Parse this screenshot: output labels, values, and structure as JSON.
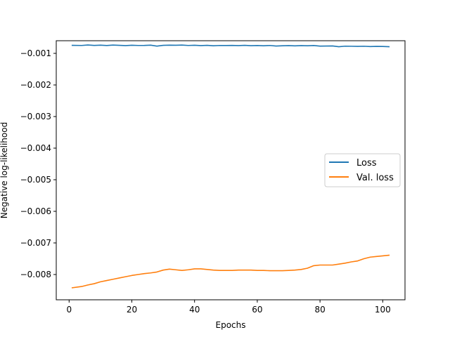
{
  "chart_data": {
    "type": "line",
    "xlabel": "Epochs",
    "ylabel": "Negative log-likelihood",
    "xlim": [
      -4.1,
      107.1
    ],
    "ylim": [
      -0.0088,
      -0.0006
    ],
    "xticks": [
      0,
      20,
      40,
      60,
      80,
      100
    ],
    "yticks": [
      -0.001,
      -0.002,
      -0.003,
      -0.004,
      -0.005,
      -0.006,
      -0.007,
      -0.008
    ],
    "xtick_labels": [
      "0",
      "20",
      "40",
      "60",
      "80",
      "100"
    ],
    "ytick_labels": [
      "−0.001",
      "−0.002",
      "−0.003",
      "−0.004",
      "−0.005",
      "−0.006",
      "−0.007",
      "−0.008"
    ],
    "legend": "center-right",
    "grid": false,
    "series": [
      {
        "name": "Loss",
        "color": "#1f77b4",
        "x": [
          1,
          4,
          6,
          8,
          10,
          12,
          14,
          16,
          18,
          20,
          22,
          24,
          26,
          28,
          30,
          32,
          34,
          36,
          38,
          40,
          42,
          44,
          46,
          48,
          50,
          52,
          54,
          56,
          58,
          60,
          62,
          64,
          66,
          68,
          70,
          72,
          74,
          76,
          78,
          80,
          82,
          84,
          86,
          88,
          90,
          92,
          94,
          96,
          98,
          100,
          102
        ],
        "y": [
          -0.000745,
          -0.00075,
          -0.000735,
          -0.000748,
          -0.00074,
          -0.000752,
          -0.000738,
          -0.000745,
          -0.000755,
          -0.000742,
          -0.00075,
          -0.000748,
          -0.00074,
          -0.00077,
          -0.000745,
          -0.00074,
          -0.000742,
          -0.000738,
          -0.00075,
          -0.000742,
          -0.000755,
          -0.000745,
          -0.00076,
          -0.00075,
          -0.000752,
          -0.000748,
          -0.000755,
          -0.000745,
          -0.000758,
          -0.000752,
          -0.00076,
          -0.00075,
          -0.000768,
          -0.00076,
          -0.000755,
          -0.000762,
          -0.000755,
          -0.00076,
          -0.000752,
          -0.00077,
          -0.000768,
          -0.000765,
          -0.00079,
          -0.000772,
          -0.000775,
          -0.00078,
          -0.000775,
          -0.000785,
          -0.00078,
          -0.000782,
          -0.00079
        ]
      },
      {
        "name": "Val. loss",
        "color": "#ff7f0e",
        "x": [
          1,
          4,
          6,
          8,
          10,
          12,
          14,
          16,
          18,
          20,
          22,
          24,
          26,
          28,
          30,
          32,
          34,
          36,
          38,
          40,
          42,
          44,
          46,
          48,
          50,
          52,
          54,
          56,
          58,
          60,
          62,
          64,
          66,
          68,
          70,
          72,
          74,
          76,
          78,
          80,
          82,
          84,
          86,
          88,
          90,
          92,
          94,
          96,
          98,
          100,
          102
        ],
        "y": [
          -0.00842,
          -0.00838,
          -0.00833,
          -0.00829,
          -0.00823,
          -0.00819,
          -0.00815,
          -0.00811,
          -0.00807,
          -0.00803,
          -0.008,
          -0.00797,
          -0.00795,
          -0.00792,
          -0.00786,
          -0.00783,
          -0.00785,
          -0.00787,
          -0.00785,
          -0.00782,
          -0.00782,
          -0.00784,
          -0.00786,
          -0.00787,
          -0.00787,
          -0.00787,
          -0.00786,
          -0.00786,
          -0.00786,
          -0.00787,
          -0.00787,
          -0.00788,
          -0.00788,
          -0.00788,
          -0.00787,
          -0.00786,
          -0.00784,
          -0.0078,
          -0.00772,
          -0.0077,
          -0.0077,
          -0.0077,
          -0.00767,
          -0.00764,
          -0.0076,
          -0.00757,
          -0.0075,
          -0.00745,
          -0.00743,
          -0.00741,
          -0.00739
        ]
      }
    ]
  }
}
